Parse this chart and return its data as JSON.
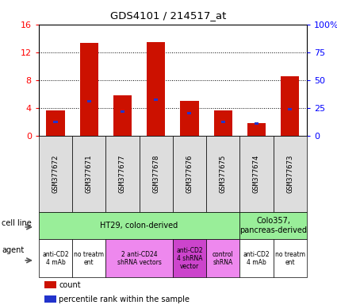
{
  "title": "GDS4101 / 214517_at",
  "samples": [
    "GSM377672",
    "GSM377671",
    "GSM377677",
    "GSM377678",
    "GSM377676",
    "GSM377675",
    "GSM377674",
    "GSM377673"
  ],
  "count_values": [
    3.6,
    13.3,
    5.8,
    13.5,
    5.0,
    3.6,
    1.8,
    8.6
  ],
  "percentile_values": [
    12.5,
    31.25,
    21.875,
    32.5,
    20.0,
    12.5,
    11.25,
    23.75
  ],
  "ylim_left": [
    0,
    16
  ],
  "ylim_right": [
    0,
    100
  ],
  "yticks_left": [
    0,
    4,
    8,
    12,
    16
  ],
  "yticks_right": [
    0,
    25,
    50,
    75,
    100
  ],
  "yticklabels_right": [
    "0",
    "25",
    "50",
    "75",
    "100%"
  ],
  "bar_color": "#cc1100",
  "blue_color": "#2233cc",
  "cell_line_groups": [
    {
      "label": "HT29, colon-derived",
      "span": [
        0,
        6
      ],
      "color": "#99ee99"
    },
    {
      "label": "Colo357,\npancreas-derived",
      "span": [
        6,
        8
      ],
      "color": "#99ee99"
    }
  ],
  "agent_groups": [
    {
      "label": "anti-CD2\n4 mAb",
      "span": [
        0,
        1
      ],
      "color": "#ffffff"
    },
    {
      "label": "no treatm\nent",
      "span": [
        1,
        2
      ],
      "color": "#ffffff"
    },
    {
      "label": "2 anti-CD24\nshRNA vectors",
      "span": [
        2,
        4
      ],
      "color": "#ee88ee"
    },
    {
      "label": "anti-CD2\n4 shRNA\nvector",
      "span": [
        4,
        5
      ],
      "color": "#cc44cc"
    },
    {
      "label": "control\nshRNA",
      "span": [
        5,
        6
      ],
      "color": "#ee88ee"
    },
    {
      "label": "anti-CD2\n4 mAb",
      "span": [
        6,
        7
      ],
      "color": "#ffffff"
    },
    {
      "label": "no treatm\nent",
      "span": [
        7,
        8
      ],
      "color": "#ffffff"
    }
  ],
  "header_bg": "#dddddd",
  "left_label_color": "#333333"
}
